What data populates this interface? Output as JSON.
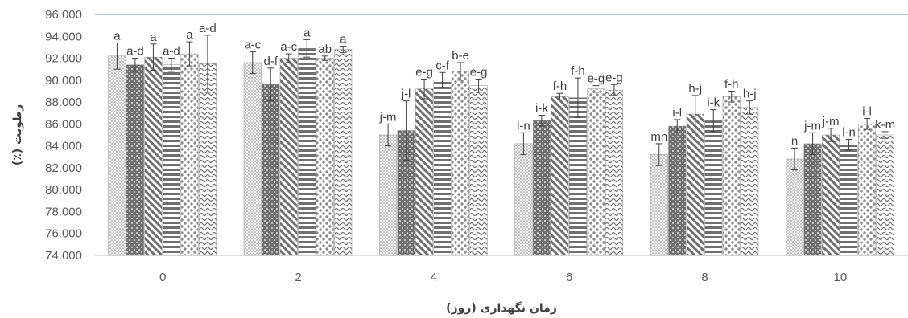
{
  "chart_data": {
    "type": "bar",
    "xlabel": "زمان نگهداری (روز)",
    "ylabel": "رطوبت (٪)",
    "ylim": [
      74,
      96
    ],
    "yticks": [
      "74.000",
      "76.000",
      "78.000",
      "80.000",
      "82.000",
      "84.000",
      "86.000",
      "88.000",
      "90.000",
      "92.000",
      "94.000",
      "96.000"
    ],
    "categories": [
      "0",
      "2",
      "4",
      "6",
      "8",
      "10"
    ],
    "grid": false,
    "series": [
      {
        "pattern": "dots-fine",
        "values": [
          92.2,
          91.6,
          85.0,
          84.2,
          83.2,
          82.8
        ],
        "errors": [
          1.2,
          1.0,
          1.0,
          1.0,
          1.0,
          1.0
        ],
        "labels": [
          "a",
          "a-c",
          "j-m",
          "l-n",
          "mn",
          "n"
        ]
      },
      {
        "pattern": "dark-dots",
        "values": [
          91.4,
          89.6,
          85.4,
          86.3,
          85.8,
          84.2
        ],
        "errors": [
          0.6,
          1.5,
          2.7,
          0.5,
          0.6,
          1.0
        ],
        "labels": [
          "a-d",
          "d-f",
          "j-l",
          "i-k",
          "i-l",
          "j-m"
        ]
      },
      {
        "pattern": "diagonal",
        "values": [
          92.1,
          92.0,
          89.2,
          88.5,
          86.9,
          85.0
        ],
        "errors": [
          1.2,
          0.4,
          0.9,
          0.3,
          1.7,
          0.6
        ],
        "labels": [
          "a",
          "a-c",
          "e-g",
          "f-h",
          "h-j",
          "j-m"
        ]
      },
      {
        "pattern": "horizontal",
        "values": [
          91.4,
          92.9,
          90.0,
          88.4,
          86.3,
          84.1
        ],
        "errors": [
          0.6,
          0.8,
          0.7,
          1.8,
          1.0,
          0.5
        ],
        "labels": [
          "a-d",
          "a",
          "c-f",
          "f-h",
          "i-k",
          "l-n"
        ]
      },
      {
        "pattern": "large-dots",
        "values": [
          92.4,
          92.0,
          90.8,
          89.2,
          88.5,
          86.0
        ],
        "errors": [
          1.1,
          0.2,
          0.8,
          0.3,
          0.5,
          0.5
        ],
        "labels": [
          "a",
          "ab",
          "b-e",
          "e-g",
          "f-h",
          "i-l"
        ]
      },
      {
        "pattern": "wave",
        "values": [
          91.5,
          92.8,
          89.5,
          89.1,
          87.5,
          85.0
        ],
        "errors": [
          2.6,
          0.3,
          0.6,
          0.5,
          0.6,
          0.3
        ],
        "labels": [
          "a-d",
          "a",
          "e-g",
          "e-g",
          "h-j",
          "k-m"
        ]
      }
    ]
  }
}
